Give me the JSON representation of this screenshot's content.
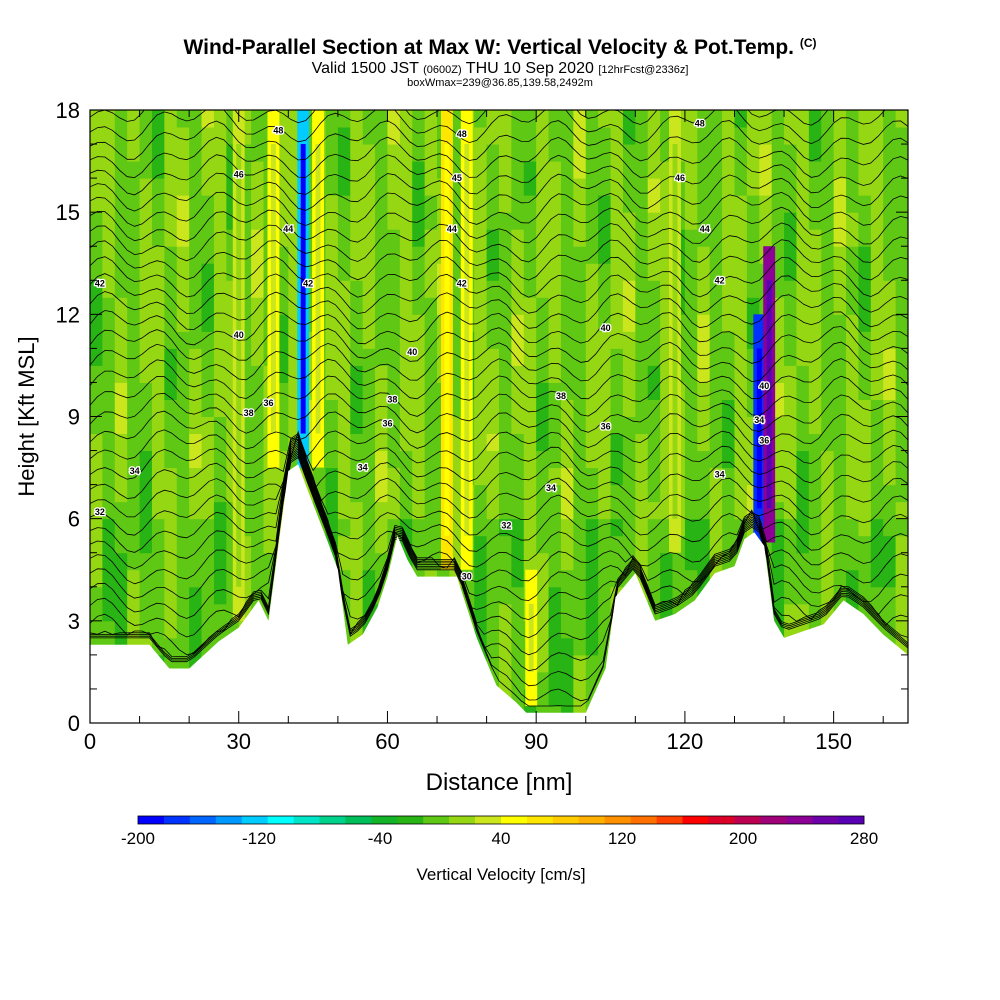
{
  "header": {
    "title": "Wind-Parallel Section at Max W: Vertical Velocity & Pot.Temp.",
    "copyright": "(C)",
    "valid_prefix": "Valid 1500 JST",
    "valid_utc": "(0600Z)",
    "valid_date": "THU 10 Sep 2020",
    "forecast": "[12hrFcst@2336z]",
    "boxinfo": "boxWmax=239@36.85,139.58,2492m"
  },
  "chart_data": {
    "type": "heatmap",
    "xlabel": "Distance [nm]",
    "ylabel": "Height [Kft MSL]",
    "xlim": [
      0,
      165
    ],
    "ylim": [
      0,
      18
    ],
    "x_ticks": [
      "0",
      "30",
      "60",
      "90",
      "120",
      "150"
    ],
    "y_ticks": [
      "0",
      "3",
      "6",
      "9",
      "12",
      "15",
      "18"
    ],
    "colorbar": {
      "label": "Vertical Velocity [cm/s]",
      "tick_labels": [
        "-200",
        "-120",
        "-40",
        "40",
        "120",
        "200",
        "280"
      ],
      "levels": [
        -200,
        280
      ],
      "colors": [
        "#0000ff",
        "#0033ff",
        "#0066ff",
        "#0099ff",
        "#00ccff",
        "#00ffff",
        "#00e5c8",
        "#00d28c",
        "#00be5a",
        "#14b428",
        "#28b414",
        "#5fc814",
        "#96d714",
        "#cce61e",
        "#ffff00",
        "#ffe600",
        "#ffcc00",
        "#ffb000",
        "#ff9000",
        "#ff7000",
        "#ff4000",
        "#ff0000",
        "#dc0028",
        "#be0050",
        "#a00078",
        "#8c0096",
        "#6e00aa",
        "#5a00b4"
      ]
    },
    "terrain_kft": {
      "x": [
        0,
        12,
        16,
        20,
        26,
        30,
        34,
        36,
        40,
        42,
        44,
        48,
        50,
        52,
        55,
        58,
        60,
        62,
        64,
        66,
        68,
        70,
        74,
        78,
        82,
        86,
        88,
        90,
        92,
        96,
        100,
        104,
        106,
        110,
        114,
        118,
        122,
        126,
        130,
        132,
        134,
        136,
        138,
        140,
        144,
        148,
        152,
        156,
        160,
        165
      ],
      "y": [
        2.3,
        2.3,
        1.6,
        1.6,
        2.4,
        2.8,
        3.6,
        3.0,
        7.4,
        7.6,
        6.8,
        5.3,
        4.5,
        2.3,
        2.6,
        3.4,
        4.3,
        5.5,
        4.8,
        4.3,
        4.3,
        4.3,
        4.3,
        2.5,
        1.1,
        0.6,
        0.3,
        0.3,
        0.3,
        0.3,
        0.3,
        1.6,
        3.7,
        4.4,
        3.0,
        3.2,
        3.6,
        4.4,
        4.6,
        5.4,
        5.6,
        5.2,
        3.0,
        2.5,
        2.7,
        2.9,
        3.6,
        3.2,
        2.6,
        2.0
      ]
    },
    "updraft_columns": [
      {
        "x": 30,
        "top": 18,
        "bottom": 3,
        "w": 25
      },
      {
        "x": 37,
        "top": 18,
        "bottom": 7.5,
        "w": 40
      },
      {
        "x": 43,
        "top": 18,
        "bottom": 7.5,
        "w": -120
      },
      {
        "x": 46,
        "top": 18,
        "bottom": 7.5,
        "w": 45
      },
      {
        "x": 72,
        "top": 18,
        "bottom": 4.5,
        "w": 70
      },
      {
        "x": 76,
        "top": 18,
        "bottom": 4.5,
        "w": 55
      },
      {
        "x": 89,
        "top": 4.5,
        "bottom": 0.5,
        "w": 45
      },
      {
        "x": 118,
        "top": 18,
        "bottom": 5,
        "w": 30
      },
      {
        "x": 135,
        "top": 12,
        "bottom": 5.3,
        "w": -170
      },
      {
        "x": 137,
        "top": 14,
        "bottom": 5.3,
        "w": 239
      }
    ],
    "theta_labels": [
      {
        "x": 38,
        "y": 17.4,
        "text": "48"
      },
      {
        "x": 75,
        "y": 17.3,
        "text": "48"
      },
      {
        "x": 123,
        "y": 17.6,
        "text": "48"
      },
      {
        "x": 30,
        "y": 16.1,
        "text": "46"
      },
      {
        "x": 74,
        "y": 16.0,
        "text": "45"
      },
      {
        "x": 119,
        "y": 16.0,
        "text": "46"
      },
      {
        "x": 40,
        "y": 14.5,
        "text": "44"
      },
      {
        "x": 73,
        "y": 14.5,
        "text": "44"
      },
      {
        "x": 124,
        "y": 14.5,
        "text": "44"
      },
      {
        "x": 2,
        "y": 12.9,
        "text": "42"
      },
      {
        "x": 44,
        "y": 12.9,
        "text": "42"
      },
      {
        "x": 75,
        "y": 12.9,
        "text": "42"
      },
      {
        "x": 127,
        "y": 13.0,
        "text": "42"
      },
      {
        "x": 30,
        "y": 11.4,
        "text": "40"
      },
      {
        "x": 65,
        "y": 10.9,
        "text": "40"
      },
      {
        "x": 104,
        "y": 11.6,
        "text": "40"
      },
      {
        "x": 136,
        "y": 9.9,
        "text": "40"
      },
      {
        "x": 32,
        "y": 9.1,
        "text": "38"
      },
      {
        "x": 61,
        "y": 9.5,
        "text": "38"
      },
      {
        "x": 95,
        "y": 9.6,
        "text": "38"
      },
      {
        "x": 36,
        "y": 9.4,
        "text": "36"
      },
      {
        "x": 60,
        "y": 8.8,
        "text": "36"
      },
      {
        "x": 104,
        "y": 8.7,
        "text": "36"
      },
      {
        "x": 135,
        "y": 8.9,
        "text": "34"
      },
      {
        "x": 136,
        "y": 8.3,
        "text": "36"
      },
      {
        "x": 9,
        "y": 7.4,
        "text": "34"
      },
      {
        "x": 55,
        "y": 7.5,
        "text": "34"
      },
      {
        "x": 93,
        "y": 6.9,
        "text": "34"
      },
      {
        "x": 127,
        "y": 7.3,
        "text": "34"
      },
      {
        "x": 2,
        "y": 6.2,
        "text": "32"
      },
      {
        "x": 84,
        "y": 5.8,
        "text": "32"
      },
      {
        "x": 76,
        "y": 4.3,
        "text": "30"
      }
    ]
  }
}
